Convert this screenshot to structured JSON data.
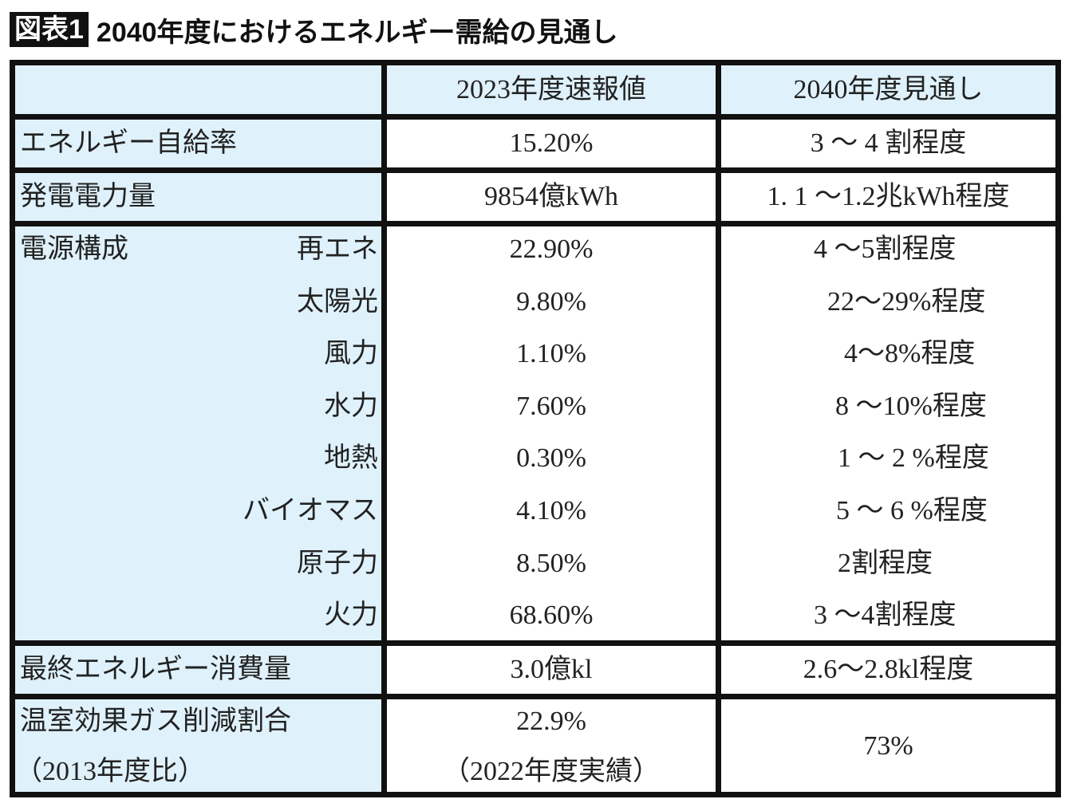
{
  "title": {
    "badge": "図表1",
    "text": "2040年度におけるエネルギー需給の見通し"
  },
  "headers": [
    "",
    "2023年度速報値",
    "2040年度見通し"
  ],
  "rows": [
    {
      "label": "エネルギー自給率",
      "v2023": "15.20%",
      "v2040": "3 ～ 4 割程度"
    },
    {
      "label": "発電電力量",
      "v2023": "9854億kWh",
      "v2040": "1. 1 ～1.2兆kWh程度"
    }
  ],
  "power_mix": {
    "label": "電源構成",
    "items": [
      {
        "label": "再エネ",
        "v2023": "22.90%",
        "v2040": "4 ～5割程度"
      },
      {
        "label": "太陽光",
        "v2023": "9.80%",
        "v2040": "22～29%程度"
      },
      {
        "label": "風力",
        "v2023": "1.10%",
        "v2040": "4～8%程度"
      },
      {
        "label": "水力",
        "v2023": "7.60%",
        "v2040": "8 ～10%程度"
      },
      {
        "label": "地熱",
        "v2023": "0.30%",
        "v2040": "1 ～ 2 %程度"
      },
      {
        "label": "バイオマス",
        "v2023": "4.10%",
        "v2040": "5 ～ 6 %程度"
      },
      {
        "label": "原子力",
        "v2023": "8.50%",
        "v2040": "2割程度"
      },
      {
        "label": "火力",
        "v2023": "68.60%",
        "v2040": "3 ～4割程度"
      }
    ]
  },
  "final_energy": {
    "label": "最終エネルギー消費量",
    "v2023": "3.0億kl",
    "v2040": "2.6～2.8kl程度"
  },
  "ghg": {
    "label": "温室効果ガス削減割合",
    "label_sub": "（2013年度比）",
    "v2023": "22.9%",
    "v2023_sub": "（2022年度実績）",
    "v2040": "73%"
  },
  "colors": {
    "label_bg": "#dff1fb",
    "border": "#111111"
  }
}
